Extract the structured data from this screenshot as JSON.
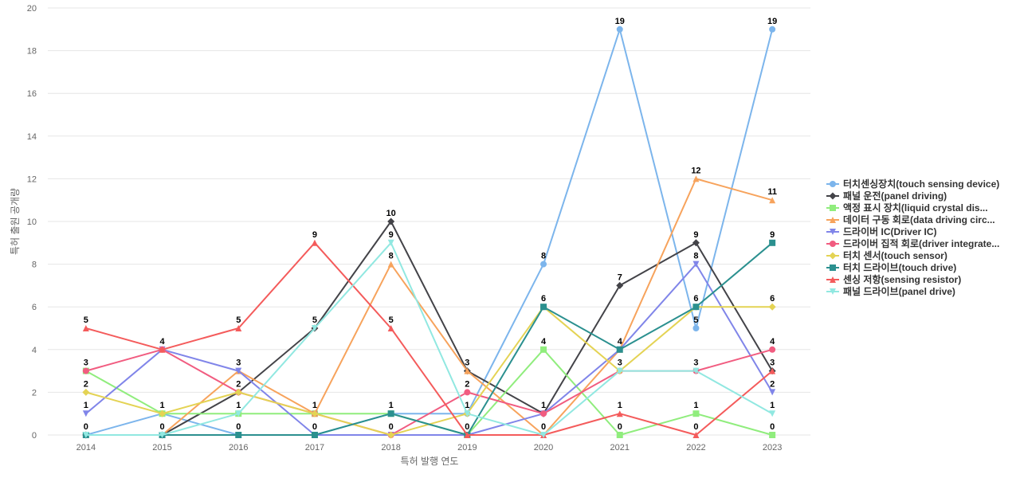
{
  "chart_data": {
    "type": "line",
    "title": "",
    "xlabel": "특허 발행 연도",
    "ylabel": "특허 출원 공개량",
    "ylim": [
      0,
      20
    ],
    "y_ticks": [
      "0",
      "2",
      "4",
      "6",
      "8",
      "10",
      "12",
      "14",
      "16",
      "18",
      "20"
    ],
    "categories": [
      "2014",
      "2015",
      "2016",
      "2017",
      "2018",
      "2019",
      "2020",
      "2021",
      "2022",
      "2023"
    ],
    "grid": "horizontal",
    "legend_position": "right",
    "series": [
      {
        "name": "터치센싱장치(touch sensing device)",
        "legend_label": "터치센싱장치(touch sensing device)",
        "color": "#7cb5ec",
        "marker": "circle",
        "values": [
          0,
          1,
          0,
          0,
          1,
          1,
          8,
          19,
          5,
          19
        ]
      },
      {
        "name": "패널 운전(panel driving)",
        "legend_label": "패널 운전(panel driving)",
        "color": "#434348",
        "marker": "diamond",
        "values": [
          0,
          0,
          2,
          5,
          10,
          3,
          1,
          7,
          9,
          3
        ]
      },
      {
        "name": "액정 표시 장치(liquid crystal display)",
        "legend_label": "액정 표시 장치(liquid crystal dis...",
        "color": "#90ed7d",
        "marker": "square",
        "values": [
          3,
          1,
          1,
          1,
          1,
          0,
          4,
          0,
          1,
          0
        ]
      },
      {
        "name": "데이터 구동 회로(data driving circuit)",
        "legend_label": "데이터 구동 회로(data driving circ...",
        "color": "#f7a35c",
        "marker": "triangle",
        "values": [
          0,
          0,
          3,
          1,
          8,
          3,
          0,
          4,
          12,
          11
        ]
      },
      {
        "name": "드라이버 IC(Driver IC)",
        "legend_label": "드라이버 IC(Driver IC)",
        "color": "#8085e9",
        "marker": "triangle-down",
        "values": [
          1,
          4,
          3,
          0,
          0,
          0,
          1,
          4,
          8,
          2
        ]
      },
      {
        "name": "드라이버 집적 회로(driver integrated circuit)",
        "legend_label": "드라이버 집적 회로(driver integrate...",
        "color": "#f15c80",
        "marker": "circle",
        "values": [
          3,
          4,
          2,
          1,
          0,
          2,
          1,
          3,
          3,
          4
        ]
      },
      {
        "name": "터치 센서(touch sensor)",
        "legend_label": "터치 센서(touch sensor)",
        "color": "#e4d354",
        "marker": "diamond",
        "values": [
          2,
          1,
          2,
          1,
          0,
          1,
          6,
          3,
          6,
          6
        ]
      },
      {
        "name": "터치 드라이브(touch drive)",
        "legend_label": "터치 드라이브(touch drive)",
        "color": "#2b908f",
        "marker": "square",
        "values": [
          0,
          0,
          0,
          0,
          1,
          0,
          6,
          4,
          6,
          9
        ]
      },
      {
        "name": "센싱 저항(sensing resistor)",
        "legend_label": "센싱 저항(sensing resistor)",
        "color": "#f45b5b",
        "marker": "triangle",
        "values": [
          5,
          4,
          5,
          9,
          5,
          0,
          0,
          1,
          0,
          3
        ]
      },
      {
        "name": "패널 드라이브(panel drive)",
        "legend_label": "패널 드라이브(panel drive)",
        "color": "#91e8e1",
        "marker": "triangle-down",
        "values": [
          0,
          0,
          1,
          5,
          9,
          1,
          0,
          3,
          3,
          1
        ]
      }
    ],
    "data_labels": [
      {
        "x": "2014",
        "labels": [
          "5",
          "3",
          "2",
          "1",
          "0"
        ]
      },
      {
        "x": "2015",
        "labels": [
          "4",
          "1",
          "0"
        ]
      },
      {
        "x": "2016",
        "labels": [
          "5",
          "3",
          "2",
          "1",
          "0"
        ]
      },
      {
        "x": "2017",
        "labels": [
          "9",
          "5",
          "1",
          "0"
        ]
      },
      {
        "x": "2018",
        "labels": [
          "10",
          "9",
          "8",
          "5",
          "1",
          "0"
        ]
      },
      {
        "x": "2019",
        "labels": [
          "3",
          "2",
          "1",
          "0"
        ]
      },
      {
        "x": "2020",
        "labels": [
          "8",
          "6",
          "4",
          "1",
          "0"
        ]
      },
      {
        "x": "2021",
        "labels": [
          "19",
          "7",
          "4",
          "3",
          "1",
          "0"
        ]
      },
      {
        "x": "2022",
        "labels": [
          "12",
          "9",
          "8",
          "6",
          "5",
          "3",
          "1",
          "0"
        ]
      },
      {
        "x": "2023",
        "labels": [
          "19",
          "11",
          "9",
          "6",
          "4",
          "3",
          "2",
          "1",
          "0"
        ]
      }
    ]
  }
}
